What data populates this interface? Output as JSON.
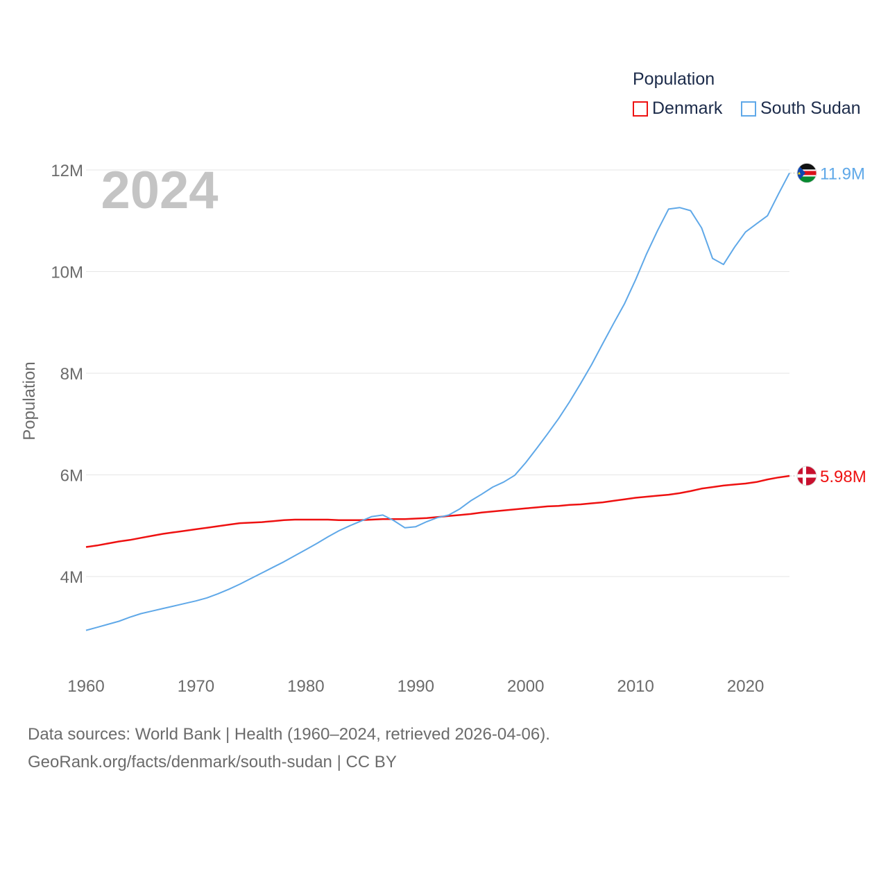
{
  "legend": {
    "title": "Population",
    "items": [
      {
        "label": "Denmark",
        "color": "#ee1111"
      },
      {
        "label": "South Sudan",
        "color": "#5fa8e8"
      }
    ]
  },
  "footer": {
    "line1": "Data sources: World Bank | Health (1960–2024, retrieved 2026-04-06).",
    "line2": "GeoRank.org/facts/denmark/south-sudan | CC BY"
  },
  "chart_data": {
    "type": "line",
    "title": "Population",
    "year_watermark": "2024",
    "ylabel": "Population",
    "xlabel": "",
    "xlim": [
      1960,
      2024
    ],
    "ylim": [
      2.6,
      12.0
    ],
    "grid": true,
    "legend_position": "top-right",
    "x_ticks": [
      1960,
      1970,
      1980,
      1990,
      2000,
      2010,
      2020
    ],
    "x_tick_labels": [
      "1960",
      "1970",
      "1980",
      "1990",
      "2000",
      "2010",
      "2020"
    ],
    "y_ticks": [
      4,
      6,
      8,
      10,
      12
    ],
    "y_tick_labels": [
      "4M",
      "6M",
      "8M",
      "10M",
      "12M"
    ],
    "x": [
      1960,
      1961,
      1962,
      1963,
      1964,
      1965,
      1966,
      1967,
      1968,
      1969,
      1970,
      1971,
      1972,
      1973,
      1974,
      1975,
      1976,
      1977,
      1978,
      1979,
      1980,
      1981,
      1982,
      1983,
      1984,
      1985,
      1986,
      1987,
      1988,
      1989,
      1990,
      1991,
      1992,
      1993,
      1994,
      1995,
      1996,
      1997,
      1998,
      1999,
      2000,
      2001,
      2002,
      2003,
      2004,
      2005,
      2006,
      2007,
      2008,
      2009,
      2010,
      2011,
      2012,
      2013,
      2014,
      2015,
      2016,
      2017,
      2018,
      2019,
      2020,
      2021,
      2022,
      2023,
      2024
    ],
    "series": [
      {
        "name": "Denmark",
        "color": "#ee1111",
        "end_label": "5.98M",
        "flag": "denmark-flag",
        "values": [
          4.58,
          4.61,
          4.65,
          4.69,
          4.72,
          4.76,
          4.8,
          4.84,
          4.87,
          4.9,
          4.93,
          4.96,
          4.99,
          5.02,
          5.05,
          5.06,
          5.07,
          5.09,
          5.11,
          5.12,
          5.12,
          5.12,
          5.12,
          5.11,
          5.11,
          5.11,
          5.12,
          5.13,
          5.13,
          5.13,
          5.14,
          5.15,
          5.17,
          5.19,
          5.21,
          5.23,
          5.26,
          5.28,
          5.3,
          5.32,
          5.34,
          5.36,
          5.38,
          5.39,
          5.41,
          5.42,
          5.44,
          5.46,
          5.49,
          5.52,
          5.55,
          5.57,
          5.59,
          5.61,
          5.64,
          5.68,
          5.73,
          5.76,
          5.79,
          5.81,
          5.83,
          5.86,
          5.91,
          5.95,
          5.98
        ]
      },
      {
        "name": "South Sudan",
        "color": "#5fa8e8",
        "end_label": "11.9M",
        "flag": "south-sudan-flag",
        "values": [
          2.94,
          3.0,
          3.06,
          3.12,
          3.2,
          3.27,
          3.32,
          3.37,
          3.42,
          3.47,
          3.52,
          3.58,
          3.66,
          3.75,
          3.85,
          3.96,
          4.07,
          4.18,
          4.29,
          4.41,
          4.53,
          4.65,
          4.78,
          4.9,
          5.0,
          5.09,
          5.18,
          5.21,
          5.1,
          4.96,
          4.98,
          5.08,
          5.16,
          5.21,
          5.33,
          5.49,
          5.62,
          5.76,
          5.86,
          5.99,
          6.24,
          6.52,
          6.81,
          7.11,
          7.44,
          7.8,
          8.17,
          8.58,
          8.98,
          9.37,
          9.84,
          10.35,
          10.81,
          11.23,
          11.26,
          11.2,
          10.86,
          10.26,
          10.14,
          10.48,
          10.78,
          10.94,
          11.1,
          11.53,
          11.94
        ]
      }
    ]
  }
}
